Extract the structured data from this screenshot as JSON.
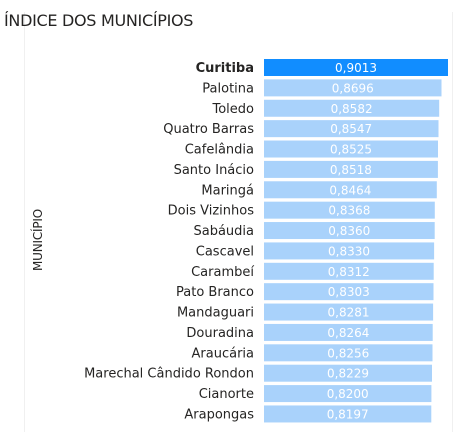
{
  "chart_data": {
    "type": "bar",
    "orientation": "horizontal",
    "title": "ÍNDICE DOS MUNICÍPIOS",
    "ylabel": "MUNICÍPIO",
    "xlabel": "",
    "categories": [
      "Curitiba",
      "Palotina",
      "Toledo",
      "Quatro Barras",
      "Cafelândia",
      "Santo Inácio",
      "Maringá",
      "Dois Vizinhos",
      "Sabáudia",
      "Cascavel",
      "Carambeí",
      "Pato Branco",
      "Mandaguari",
      "Douradina",
      "Araucária",
      "Marechal Cândido Rondon",
      "Cianorte",
      "Arapongas"
    ],
    "values": [
      0.9013,
      0.8696,
      0.8582,
      0.8547,
      0.8525,
      0.8518,
      0.8464,
      0.8368,
      0.836,
      0.833,
      0.8312,
      0.8303,
      0.8281,
      0.8264,
      0.8256,
      0.8229,
      0.82,
      0.8197
    ],
    "value_labels": [
      "0,9013",
      "0,8696",
      "0,8582",
      "0,8547",
      "0,8525",
      "0,8518",
      "0,8464",
      "0,8368",
      "0,8360",
      "0,8330",
      "0,8312",
      "0,8303",
      "0,8281",
      "0,8264",
      "0,8256",
      "0,8229",
      "0,8200",
      "0,8197"
    ],
    "highlighted": "Curitiba",
    "colors": {
      "bar": "#a9d2fb",
      "highlight": "#118dff",
      "label": "#ffffff",
      "category_text": "#252423"
    }
  }
}
